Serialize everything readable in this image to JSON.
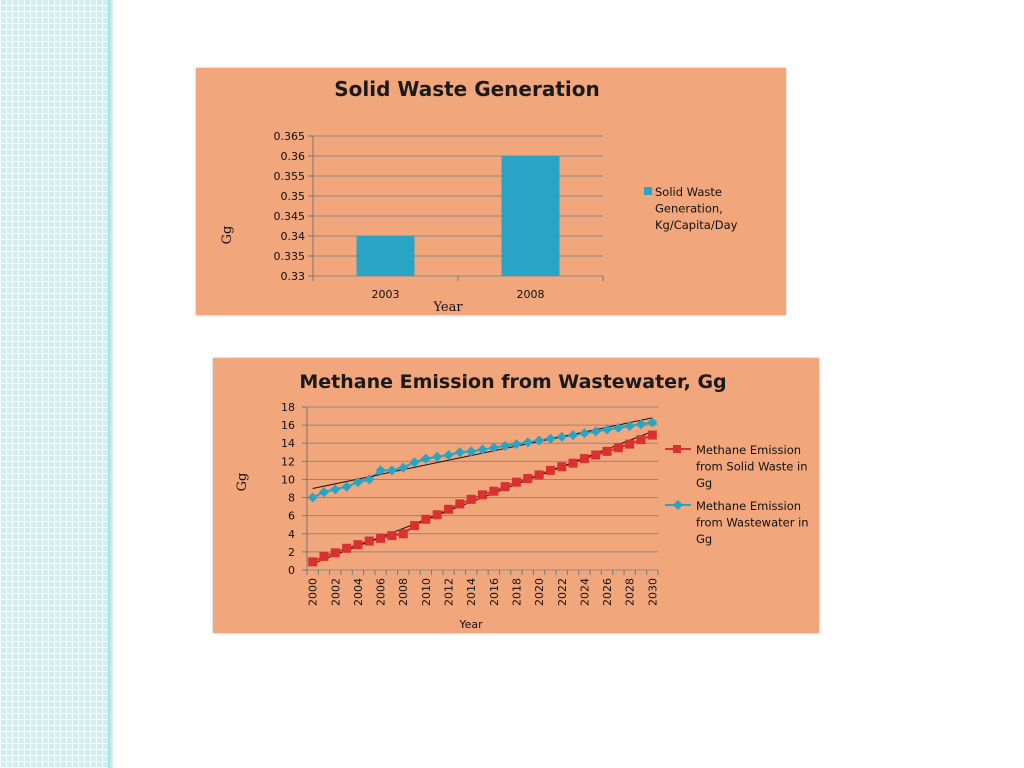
{
  "chart_data": [
    {
      "type": "bar",
      "title": "Solid Waste Generation",
      "xlabel": "Year",
      "ylabel": "Gg",
      "categories": [
        "2003",
        "2008"
      ],
      "series": [
        {
          "name": "Solid Waste Generation, Kg/Capita/Day",
          "values": [
            0.34,
            0.36
          ],
          "color": "#2aa4c4"
        }
      ],
      "legend_lines": [
        "Solid Waste",
        "Generation,",
        "Kg/Capita/Day"
      ],
      "yticks": [
        "0.33",
        "0.335",
        "0.34",
        "0.345",
        "0.35",
        "0.355",
        "0.36",
        "0.365"
      ],
      "ylim": [
        0.33,
        0.365
      ],
      "grid": true,
      "legend_position": "right"
    },
    {
      "type": "line",
      "title": "Methane Emission from Wastewater, Gg",
      "xlabel": "Year",
      "ylabel": "Gg",
      "x": [
        "2000",
        "2001",
        "2002",
        "2003",
        "2004",
        "2005",
        "2006",
        "2007",
        "2008",
        "2009",
        "2010",
        "2011",
        "2012",
        "2013",
        "2014",
        "2015",
        "2016",
        "2017",
        "2018",
        "2019",
        "2020",
        "2021",
        "2022",
        "2023",
        "2024",
        "2025",
        "2026",
        "2027",
        "2028",
        "2029",
        "2030"
      ],
      "xtick_labels": [
        "2000",
        "2002",
        "2004",
        "2006",
        "2008",
        "2010",
        "2012",
        "2014",
        "2016",
        "2018",
        "2020",
        "2022",
        "2024",
        "2026",
        "2028",
        "2030"
      ],
      "yticks": [
        "0",
        "2",
        "4",
        "6",
        "8",
        "10",
        "12",
        "14",
        "16",
        "18"
      ],
      "ylim": [
        0,
        18
      ],
      "series": [
        {
          "name": "Methane Emission from Solid Waste in Gg",
          "legend_lines": [
            "Methane Emission",
            "from Solid Waste in",
            "Gg"
          ],
          "color": "#d93030",
          "marker": "square",
          "values": [
            0.9,
            1.5,
            1.9,
            2.4,
            2.8,
            3.2,
            3.5,
            3.8,
            4.0,
            4.9,
            5.6,
            6.1,
            6.7,
            7.3,
            7.8,
            8.3,
            8.7,
            9.2,
            9.7,
            10.1,
            10.5,
            11.0,
            11.4,
            11.8,
            12.3,
            12.7,
            13.1,
            13.5,
            13.9,
            14.4,
            14.9
          ],
          "trendline": [
            0.7,
            15.3
          ]
        },
        {
          "name": "Methane Emission from Wastewater in Gg",
          "legend_lines": [
            "Methane Emission",
            "from Wastewater in",
            "Gg"
          ],
          "color": "#2aa4c4",
          "marker": "diamond",
          "values": [
            8.0,
            8.6,
            8.9,
            9.2,
            9.7,
            10.0,
            11.0,
            11.0,
            11.3,
            11.9,
            12.3,
            12.5,
            12.7,
            13.0,
            13.1,
            13.3,
            13.5,
            13.7,
            13.9,
            14.1,
            14.3,
            14.5,
            14.7,
            14.9,
            15.1,
            15.3,
            15.5,
            15.7,
            15.9,
            16.1,
            16.3
          ],
          "trendline": [
            9.0,
            16.8
          ]
        }
      ],
      "trendline_color": "#111111",
      "grid": true,
      "legend_position": "right"
    }
  ]
}
